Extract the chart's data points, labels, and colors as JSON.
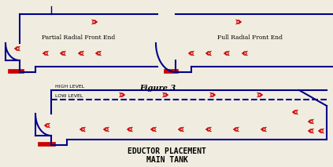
{
  "title1": "Partial Radial Front End",
  "title2": "Full Radial Front End",
  "title3": "Figure 3",
  "label_high": "HIGH LEVEL",
  "label_low": "LOW LEVEL",
  "bottom_title1": "EDUCTOR PLACEMENT",
  "bottom_title2": "MAIN TANK",
  "bg_color": "#f0ede0",
  "blue": "#00008B",
  "red": "#CC0000",
  "dark_blue": "#000080"
}
